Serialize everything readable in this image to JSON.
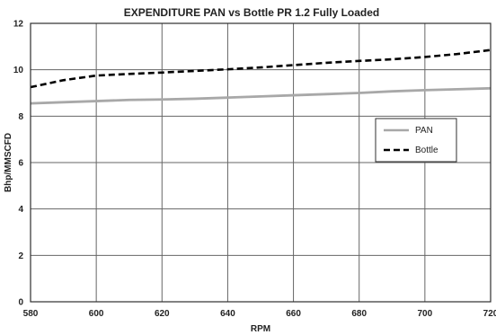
{
  "chart_data": {
    "type": "line",
    "title": "EXPENDITURE  PAN vs Bottle  PR 1.2 Fully Loaded",
    "xlabel": "RPM",
    "ylabel": "Bhp/MMSCFD",
    "xlim": [
      580,
      720
    ],
    "ylim": [
      0,
      12
    ],
    "xticks": [
      "580",
      "600",
      "620",
      "640",
      "660",
      "680",
      "700",
      "720"
    ],
    "yticks": [
      "0",
      "2",
      "4",
      "6",
      "8",
      "10",
      "12"
    ],
    "grid": true,
    "legend_position": "right",
    "series": [
      {
        "name": "PAN",
        "color": "#a8a8a8",
        "dash": "solid",
        "x": [
          580,
          590,
          600,
          610,
          620,
          630,
          640,
          650,
          660,
          670,
          680,
          690,
          700,
          710,
          720
        ],
        "y": [
          8.55,
          8.6,
          8.65,
          8.7,
          8.72,
          8.75,
          8.8,
          8.85,
          8.9,
          8.95,
          9.0,
          9.07,
          9.12,
          9.16,
          9.2
        ]
      },
      {
        "name": "Bottle",
        "color": "#000000",
        "dash": "dashed",
        "x": [
          580,
          590,
          600,
          610,
          620,
          630,
          640,
          650,
          660,
          670,
          680,
          690,
          700,
          710,
          720
        ],
        "y": [
          9.25,
          9.55,
          9.75,
          9.82,
          9.88,
          9.95,
          10.02,
          10.1,
          10.2,
          10.3,
          10.38,
          10.45,
          10.55,
          10.68,
          10.85
        ]
      }
    ]
  }
}
